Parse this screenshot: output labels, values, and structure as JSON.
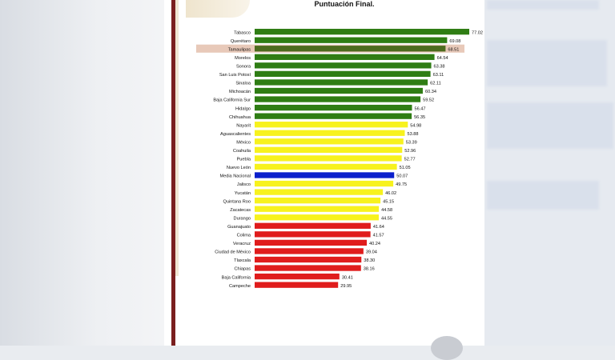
{
  "chart_title": "Puntuación Final.",
  "colors": {
    "green": "#2f7d14",
    "yellow": "#f7f21e",
    "blue": "#0b1fcc",
    "red": "#e01c1c",
    "highlight_row": "#e8c9b9",
    "highlight_bar": "#4d6b1e"
  },
  "chart_data": {
    "type": "bar",
    "orientation": "horizontal",
    "title": "Puntuación Final.",
    "xlim": [
      0,
      77.02
    ],
    "categories": [
      "Tabasco",
      "Querétaro",
      "Tamaulipas",
      "Morelos",
      "Sonora",
      "San Luis Potosí",
      "Sinaloa",
      "Michoacán",
      "Baja California Sur",
      "Hidalgo",
      "Chihuahua",
      "Nayarit",
      "Aguascalientes",
      "México",
      "Coahuila",
      "Puebla",
      "Nuevo León",
      "Media Nacional",
      "Jalisco",
      "Yucatán",
      "Quintana Roo",
      "Zacatecas",
      "Durango",
      "Guanajuato",
      "Colima",
      "Veracruz",
      "Ciudad de México",
      "Tlaxcala",
      "Chiapas",
      "Baja California",
      "Campeche"
    ],
    "values": [
      77.02,
      69.08,
      68.51,
      64.54,
      63.38,
      63.11,
      62.11,
      60.34,
      59.52,
      56.47,
      56.35,
      54.98,
      53.88,
      53.39,
      52.96,
      52.77,
      51.05,
      50.07,
      49.75,
      46.02,
      45.15,
      44.58,
      44.55,
      41.64,
      41.57,
      40.24,
      39.04,
      38.3,
      38.16,
      30.41,
      29.95
    ],
    "value_labels": [
      "77.02",
      "69.08",
      "68.51",
      "64.54",
      "63.38",
      "63.11",
      "62.11",
      "60.34",
      "59.52",
      "56.47",
      "56.35",
      "54.98",
      "53.88",
      "53.39",
      "52.96",
      "52.77",
      "51.05",
      "50.07",
      "49.75",
      "46.02",
      "45.15",
      "44.58",
      "44.55",
      "41.64",
      "41.57",
      "40.24",
      "39.04",
      "38.30",
      "38.16",
      "30.41",
      "29.95"
    ],
    "bar_colors": [
      "green",
      "green",
      "highlight_bar",
      "green",
      "green",
      "green",
      "green",
      "green",
      "green",
      "green",
      "green",
      "yellow",
      "yellow",
      "yellow",
      "yellow",
      "yellow",
      "yellow",
      "blue",
      "yellow",
      "yellow",
      "yellow",
      "yellow",
      "yellow",
      "red",
      "red",
      "red",
      "red",
      "red",
      "red",
      "red",
      "red"
    ],
    "highlighted_category": "Tamaulipas"
  }
}
